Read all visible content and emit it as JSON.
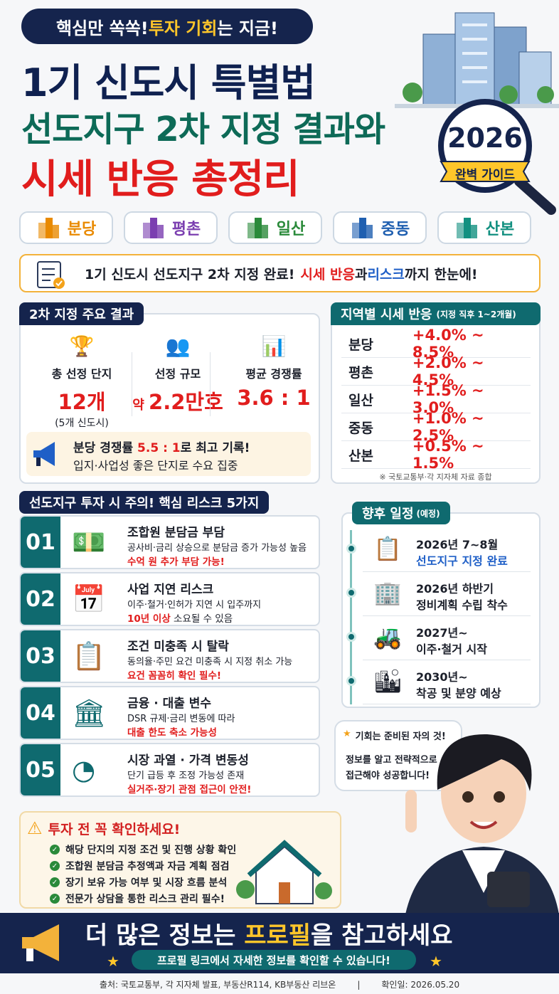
{
  "header": {
    "badge": [
      "핵심만 쏙쏙! ",
      "투자 기회",
      "는 지금!"
    ],
    "title_lines": [
      "1기 신도시 특별법",
      "선도지구 2차 지정 결과와",
      "시세 반응 총정리"
    ],
    "seal_year": "2026",
    "seal_label": "완벽 가이드"
  },
  "regions": [
    "분당",
    "평촌",
    "일산",
    "중동",
    "산본"
  ],
  "summary": [
    "1기 신도시 선도지구 2차 지정 완료! ",
    "시세 반응",
    "과 ",
    "리스크",
    " 까지 한눈에!"
  ],
  "results": {
    "title": "2차 지정 주요 결과",
    "items": [
      {
        "label": "총 선정 단지",
        "value": "12개",
        "note": "(5개 신도시)"
      },
      {
        "label": "선정 규모",
        "prefix": "약 ",
        "value": "2.2만호"
      },
      {
        "label": "평균 경쟁률",
        "value": "3.6 : 1"
      }
    ],
    "highlight": [
      "분당 경쟁률 ",
      "5.5 : 1",
      "로 최고 기록!"
    ],
    "highlight_sub": "입지·사업성 좋은 단지로 수요 집중"
  },
  "prices": {
    "title": "지역별 시세 반응",
    "subtitle": "(지정 직후 1~2개월)",
    "rows": [
      {
        "region": "분당",
        "change": "+4.0% ~ 8.5%"
      },
      {
        "region": "평촌",
        "change": "+2.0% ~ 4.5%"
      },
      {
        "region": "일산",
        "change": "+1.5% ~ 3.0%"
      },
      {
        "region": "중동",
        "change": "+1.0% ~ 2.5%"
      },
      {
        "region": "산본",
        "change": "+0.5% ~ 1.5%"
      }
    ],
    "note": "※ 국토교통부·각 지자체 자료 종합"
  },
  "risks": {
    "title": "선도지구 투자 시 주의! 핵심 리스크 5가지",
    "items": [
      {
        "num": "01",
        "title": "조합원 분담금 부담",
        "desc": "공사비·금리 상승으로 분담금 증가 가능성 높음",
        "warn": "수억 원 추가 부담 가능!"
      },
      {
        "num": "02",
        "title": "사업 지연 리스크",
        "desc": "이주·철거·인허가 지연 시 입주까지",
        "warn": "10년 이상",
        "warn_tail": " 소요될 수 있음"
      },
      {
        "num": "03",
        "title": "조건 미충족 시 탈락",
        "desc": "동의율·주민 요건 미충족 시 지정 취소 가능",
        "warn": "요건 꼼꼼히 확인 필수!"
      },
      {
        "num": "04",
        "title": "금융 · 대출 변수",
        "desc": "DSR 규제·금리 변동에 따라",
        "warn": "대출 한도 축소 가능성"
      },
      {
        "num": "05",
        "title": "시장 과열 · 가격 변동성",
        "desc": "단기 급등 후 조정 가능성 존재",
        "warn": "실거주·장기 관점 접근이 안전!"
      }
    ]
  },
  "schedule": {
    "title": "향후 일정",
    "subtitle": "(예정)",
    "items": [
      {
        "date": "2026년 7~8월",
        "text": "선도지구 지정 완료"
      },
      {
        "date": "2026년 하반기",
        "text": "정비계획 수립 착수"
      },
      {
        "date": "2027년~",
        "text": "이주·철거 시작"
      },
      {
        "date": "2030년~",
        "text": "착공 및 분양 예상"
      }
    ]
  },
  "bubble": {
    "title": "기회는 준비된 자의 것!",
    "lines": [
      "정보를 알고 전략적으로",
      "접근해야 성공합니다!"
    ]
  },
  "checklist": {
    "title": "투자 전 꼭 확인하세요!",
    "items": [
      "해당 단지의 지정 조건 및 진행 상황 확인",
      "조합원 분담금 추정액과 자금 계획 점검",
      "장기 보유 가능 여부 및 시장 흐름 분석",
      "전문가 상담을 통한 리스크 관리 필수!"
    ]
  },
  "footer": {
    "headline": [
      "더 많은 정보는 ",
      "프로필",
      "을 참고하세요"
    ],
    "sub": "프로필 링크에서 자세한 정보를 확인할 수 있습니다!",
    "source": "출처: 국토교통부, 각 지자체 발표, 부동산R114, KB부동산 리브온",
    "checked": "확인일: 2026.05.20"
  }
}
